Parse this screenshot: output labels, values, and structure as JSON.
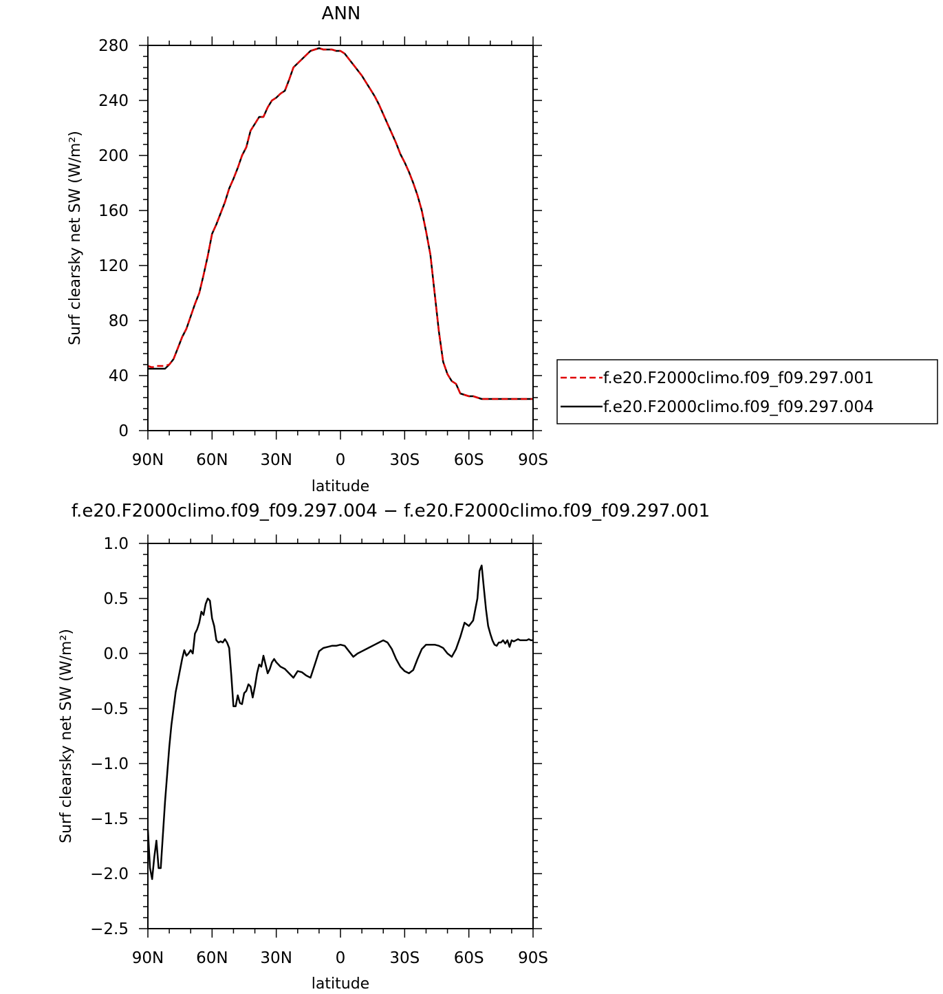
{
  "top_title": "ANN",
  "bottom_title": "f.e20.F2000climo.f09_f09.297.004 − f.e20.F2000climo.f09_f09.297.001",
  "legend": {
    "entries": [
      {
        "label": "f.e20.F2000climo.f09_f09.297.001",
        "color": "#e00000",
        "dash": true
      },
      {
        "label": "f.e20.F2000climo.f09_f09.297.004",
        "color": "#000000",
        "dash": false
      }
    ]
  },
  "chart_data": [
    {
      "type": "line",
      "title": "ANN",
      "xlabel": "latitude",
      "ylabel": "Surf clearsky net SW (W/m²)",
      "xlim": [
        90,
        -90
      ],
      "ylim": [
        0,
        280
      ],
      "xticks": [
        90,
        60,
        30,
        0,
        -30,
        -60,
        -90
      ],
      "xtick_labels": [
        "90N",
        "60N",
        "30N",
        "0",
        "30S",
        "60S",
        "90S"
      ],
      "yticks": [
        0,
        40,
        80,
        120,
        160,
        200,
        240,
        280
      ],
      "ytick_labels": [
        "0",
        "40",
        "80",
        "120",
        "160",
        "200",
        "240",
        "280"
      ],
      "grid": false,
      "legend_position": "right",
      "series": [
        {
          "name": "f.e20.F2000climo.f09_f09.297.001",
          "color": "#e00000",
          "dash": true,
          "x": [
            90,
            88,
            86,
            84,
            82,
            80,
            78,
            76,
            74,
            72,
            70,
            68,
            66,
            64,
            62,
            60,
            58,
            56,
            54,
            52,
            50,
            48,
            46,
            44,
            42,
            40,
            38,
            36,
            34,
            32,
            30,
            28,
            26,
            24,
            22,
            20,
            18,
            16,
            14,
            12,
            10,
            8,
            6,
            4,
            2,
            0,
            -2,
            -4,
            -6,
            -8,
            -10,
            -12,
            -14,
            -16,
            -18,
            -20,
            -22,
            -24,
            -26,
            -28,
            -30,
            -32,
            -34,
            -36,
            -38,
            -40,
            -42,
            -44,
            -46,
            -48,
            -50,
            -52,
            -54,
            -56,
            -58,
            -60,
            -62,
            -64,
            -66,
            -68,
            -70,
            -72,
            -74,
            -76,
            -78,
            -80,
            -82,
            -84,
            -86,
            -88,
            -90
          ],
          "y": [
            47,
            46,
            47,
            47,
            47,
            48,
            52,
            60,
            68,
            74,
            83,
            92,
            100,
            113,
            127,
            143,
            150,
            158,
            166,
            176,
            183,
            191,
            200,
            206,
            218,
            223,
            228,
            228,
            235,
            240,
            242,
            245,
            247,
            255,
            264,
            267,
            270,
            273,
            276,
            277,
            278,
            277,
            277,
            277,
            276,
            276,
            274,
            270,
            266,
            262,
            258,
            253,
            248,
            243,
            237,
            230,
            223,
            216,
            209,
            201,
            195,
            188,
            180,
            171,
            160,
            145,
            128,
            100,
            72,
            50,
            41,
            36,
            34,
            27,
            26,
            25,
            25,
            24,
            23,
            23,
            23,
            23,
            23,
            23,
            23,
            23,
            23,
            23,
            23,
            23,
            23
          ]
        },
        {
          "name": "f.e20.F2000climo.f09_f09.297.004",
          "color": "#000000",
          "dash": false,
          "x": [
            90,
            88,
            86,
            84,
            82,
            80,
            78,
            76,
            74,
            72,
            70,
            68,
            66,
            64,
            62,
            60,
            58,
            56,
            54,
            52,
            50,
            48,
            46,
            44,
            42,
            40,
            38,
            36,
            34,
            32,
            30,
            28,
            26,
            24,
            22,
            20,
            18,
            16,
            14,
            12,
            10,
            8,
            6,
            4,
            2,
            0,
            -2,
            -4,
            -6,
            -8,
            -10,
            -12,
            -14,
            -16,
            -18,
            -20,
            -22,
            -24,
            -26,
            -28,
            -30,
            -32,
            -34,
            -36,
            -38,
            -40,
            -42,
            -44,
            -46,
            -48,
            -50,
            -52,
            -54,
            -56,
            -58,
            -60,
            -62,
            -64,
            -66,
            -68,
            -70,
            -72,
            -74,
            -76,
            -78,
            -80,
            -82,
            -84,
            -86,
            -88,
            -90
          ],
          "y": [
            45,
            45,
            45,
            45,
            45,
            48,
            52,
            60,
            68,
            74,
            83,
            92,
            100,
            113,
            127,
            143,
            150,
            158,
            166,
            176,
            183,
            191,
            200,
            206,
            218,
            223,
            228,
            228,
            235,
            240,
            242,
            245,
            247,
            255,
            264,
            267,
            270,
            273,
            276,
            277,
            278,
            277,
            277,
            277,
            276,
            276,
            274,
            270,
            266,
            262,
            258,
            253,
            248,
            243,
            237,
            230,
            223,
            216,
            209,
            201,
            195,
            188,
            180,
            171,
            160,
            145,
            128,
            100,
            72,
            50,
            41,
            36,
            34,
            27,
            26,
            25,
            25,
            24,
            23,
            23,
            23,
            23,
            23,
            23,
            23,
            23,
            23,
            23,
            23,
            23,
            23
          ]
        }
      ]
    },
    {
      "type": "line",
      "title": "f.e20.F2000climo.f09_f09.297.004 − f.e20.F2000climo.f09_f09.297.001",
      "xlabel": "latitude",
      "ylabel": "Surf clearsky net SW (W/m²)",
      "xlim": [
        90,
        -90
      ],
      "ylim": [
        -2.5,
        1.0
      ],
      "xticks": [
        90,
        60,
        30,
        0,
        -30,
        -60,
        -90
      ],
      "xtick_labels": [
        "90N",
        "60N",
        "30N",
        "0",
        "30S",
        "60S",
        "90S"
      ],
      "yticks": [
        -2.5,
        -2.0,
        -1.5,
        -1.0,
        -0.5,
        0.0,
        0.5,
        1.0
      ],
      "ytick_labels": [
        "−2.5",
        "−2.0",
        "−1.5",
        "−1.0",
        "−0.5",
        "0.0",
        "0.5",
        "1.0"
      ],
      "grid": false,
      "series": [
        {
          "color": "#000000",
          "dash": false,
          "x": [
            90,
            89,
            88,
            87,
            86,
            85,
            84,
            83,
            82,
            81,
            80,
            79,
            78,
            77,
            76,
            75,
            74,
            73,
            72,
            71,
            70,
            69,
            68,
            67,
            66,
            65,
            64,
            63,
            62,
            61,
            60,
            59,
            58,
            57,
            56,
            55,
            54,
            53,
            52,
            51,
            50,
            49,
            48,
            47,
            46,
            45,
            44,
            43,
            42,
            41,
            40,
            39,
            38,
            37,
            36,
            35,
            34,
            33,
            32,
            31,
            30,
            28,
            26,
            24,
            22,
            20,
            18,
            16,
            14,
            12,
            10,
            8,
            6,
            4,
            2,
            0,
            -2,
            -4,
            -6,
            -8,
            -10,
            -12,
            -14,
            -16,
            -18,
            -20,
            -22,
            -24,
            -26,
            -28,
            -30,
            -32,
            -34,
            -36,
            -38,
            -40,
            -42,
            -44,
            -46,
            -48,
            -50,
            -52,
            -54,
            -56,
            -58,
            -60,
            -62,
            -63,
            -64,
            -65,
            -66,
            -67,
            -68,
            -69,
            -70,
            -71,
            -72,
            -73,
            -74,
            -75,
            -76,
            -77,
            -78,
            -79,
            -80,
            -81,
            -82,
            -83,
            -84,
            -85,
            -86,
            -87,
            -88,
            -89,
            -90
          ],
          "y": [
            -1.6,
            -1.95,
            -2.05,
            -1.85,
            -1.7,
            -1.95,
            -1.95,
            -1.65,
            -1.35,
            -1.1,
            -0.85,
            -0.65,
            -0.5,
            -0.35,
            -0.25,
            -0.15,
            -0.05,
            0.03,
            -0.02,
            0.0,
            0.03,
            0.0,
            0.18,
            0.22,
            0.28,
            0.38,
            0.35,
            0.45,
            0.5,
            0.48,
            0.32,
            0.25,
            0.12,
            0.1,
            0.11,
            0.1,
            0.13,
            0.1,
            0.05,
            -0.2,
            -0.48,
            -0.48,
            -0.38,
            -0.45,
            -0.46,
            -0.36,
            -0.34,
            -0.28,
            -0.3,
            -0.4,
            -0.3,
            -0.18,
            -0.1,
            -0.12,
            -0.02,
            -0.1,
            -0.18,
            -0.14,
            -0.08,
            -0.05,
            -0.08,
            -0.12,
            -0.14,
            -0.18,
            -0.22,
            -0.16,
            -0.17,
            -0.2,
            -0.22,
            -0.1,
            0.02,
            0.05,
            0.06,
            0.07,
            0.07,
            0.08,
            0.07,
            0.02,
            -0.03,
            0.0,
            0.02,
            0.04,
            0.06,
            0.08,
            0.1,
            0.12,
            0.1,
            0.04,
            -0.05,
            -0.12,
            -0.16,
            -0.18,
            -0.15,
            -0.05,
            0.04,
            0.08,
            0.08,
            0.08,
            0.07,
            0.05,
            0.0,
            -0.03,
            0.04,
            0.15,
            0.28,
            0.25,
            0.3,
            0.4,
            0.5,
            0.75,
            0.8,
            0.6,
            0.4,
            0.25,
            0.18,
            0.12,
            0.08,
            0.07,
            0.1,
            0.1,
            0.12,
            0.09,
            0.12,
            0.06,
            0.12,
            0.11,
            0.12,
            0.13,
            0.12,
            0.12,
            0.12,
            0.12,
            0.13,
            0.12,
            0.12
          ]
        }
      ]
    }
  ]
}
